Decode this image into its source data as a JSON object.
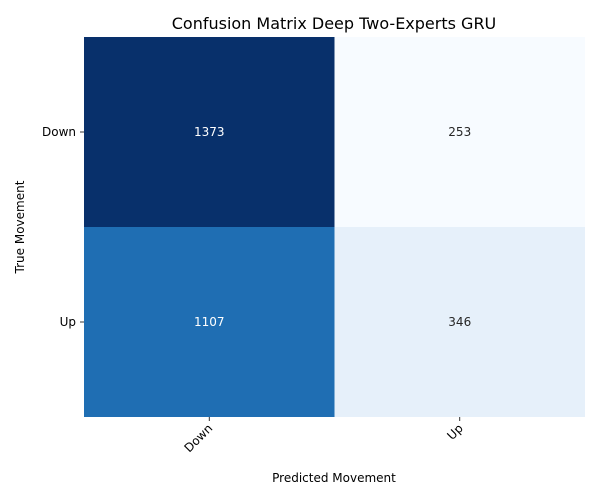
{
  "chart_data": {
    "type": "heatmap",
    "title": "Confusion Matrix Deep Two-Experts GRU",
    "xlabel": "Predicted Movement",
    "ylabel": "True Movement",
    "x_categories": [
      "Down",
      "Up"
    ],
    "y_categories": [
      "Down",
      "Up"
    ],
    "values": [
      [
        1373,
        253
      ],
      [
        1107,
        346
      ]
    ],
    "colormap": "Blues",
    "colorbar": false,
    "annotated": true
  }
}
